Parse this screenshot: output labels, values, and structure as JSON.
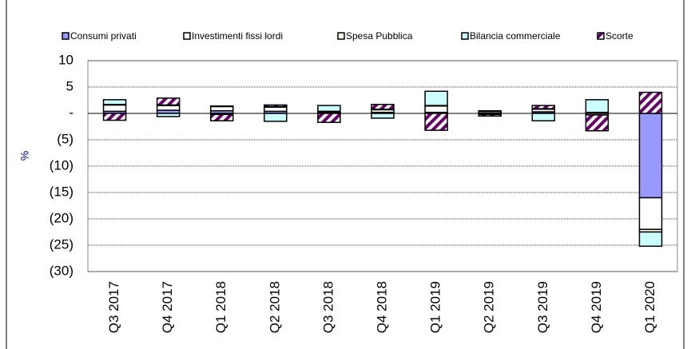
{
  "chart_data": {
    "type": "stacked-bar",
    "y_label": "%",
    "categories": [
      "Q3 2017",
      "Q4 2017",
      "Q1 2018",
      "Q2 2018",
      "Q3 2018",
      "Q4 2018",
      "Q1 2019",
      "Q2 2019",
      "Q3 2019",
      "Q4 2019",
      "Q1 2020"
    ],
    "series": [
      {
        "name": "Consumi privati",
        "color": "#9999ff",
        "values": [
          0.4,
          0.6,
          0.5,
          0.4,
          0.1,
          0.2,
          0.2,
          0.1,
          0.3,
          0.1,
          -16
        ]
      },
      {
        "name": "Investimenti fissi lordi",
        "color": "#ffffff",
        "values": [
          1.2,
          0.9,
          0.8,
          0.8,
          0.2,
          0.5,
          1.2,
          0.3,
          0.5,
          -0.3,
          -6
        ]
      },
      {
        "name": "Spesa Pubblica",
        "color": "#ffffee",
        "values": [
          0.1,
          0.1,
          0.1,
          0.1,
          0.1,
          0.1,
          0.1,
          0.1,
          0.1,
          0.1,
          -0.5
        ]
      },
      {
        "name": "Bilancia commerciale",
        "color": "#ccffff",
        "values": [
          0.9,
          -0.6,
          -0.2,
          -1.5,
          1.1,
          -0.9,
          2.7,
          -0.2,
          -1.4,
          2.4,
          -2.7
        ]
      },
      {
        "name": "Scorte",
        "color": "#660066",
        "hatch": true,
        "values": [
          -1.3,
          1.3,
          -1.2,
          0.3,
          -1.7,
          0.9,
          -3.2,
          -0.3,
          0.6,
          -3.0,
          4
        ]
      }
    ],
    "ylim": [
      -30,
      10
    ],
    "yticks": [
      10,
      5,
      {
        "value": 0,
        "label": "-"
      },
      {
        "value": -5,
        "label": "(5)"
      },
      {
        "value": -10,
        "label": "(10)"
      },
      {
        "value": -15,
        "label": "(15)"
      },
      {
        "value": -20,
        "label": "(20)"
      },
      {
        "value": -25,
        "label": "(25)"
      },
      {
        "value": -30,
        "label": "(30)"
      }
    ],
    "grid": true
  }
}
